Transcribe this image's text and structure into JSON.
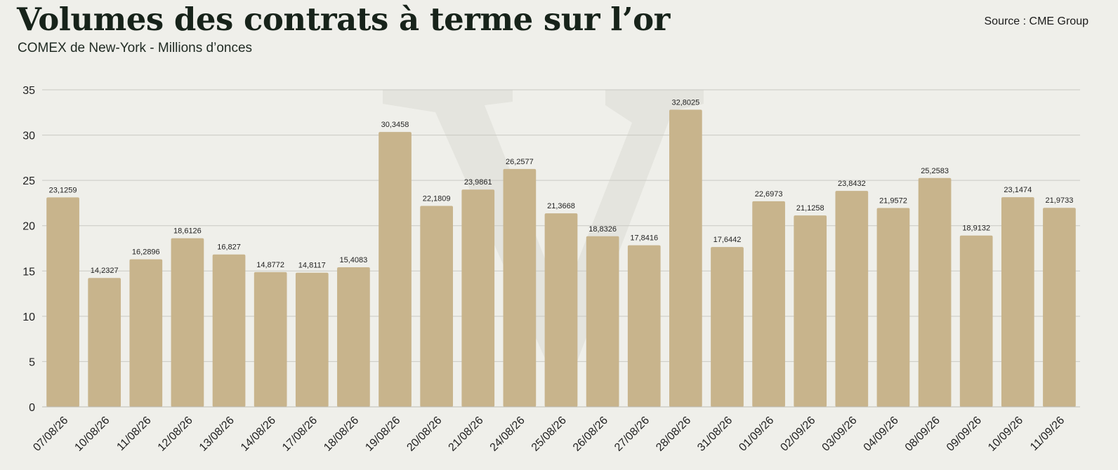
{
  "header": {
    "title": "Volumes des contrats à terme sur l’or",
    "subtitle": "COMEX de New-York - Millions d’onces",
    "source": "Source : CME Group"
  },
  "colors": {
    "bar": "#c8b48c",
    "grid": "#c9c9c3",
    "background": "#efefea",
    "watermark": "#e4e4de"
  },
  "chart_data": {
    "type": "bar",
    "title": "Volumes des contrats à terme sur l’or",
    "subtitle": "COMEX de New-York - Millions d’onces",
    "xlabel": "",
    "ylabel": "",
    "ylim": [
      0,
      35
    ],
    "yticks": [
      0,
      5,
      10,
      15,
      20,
      25,
      30,
      35
    ],
    "grid": true,
    "legend": "none",
    "categories": [
      "07/08/26",
      "10/08/26",
      "11/08/26",
      "12/08/26",
      "13/08/26",
      "14/08/26",
      "17/08/26",
      "18/08/26",
      "19/08/26",
      "20/08/26",
      "21/08/26",
      "24/08/26",
      "25/08/26",
      "26/08/26",
      "27/08/26",
      "28/08/26",
      "31/08/26",
      "01/09/26",
      "02/09/26",
      "03/09/26",
      "04/09/26",
      "08/09/26",
      "09/09/26",
      "10/09/26",
      "11/09/26"
    ],
    "values": [
      23.1259,
      14.2327,
      16.2896,
      18.6126,
      16.827,
      14.8772,
      14.8117,
      15.4083,
      30.3458,
      22.1809,
      23.9861,
      26.2577,
      21.3668,
      18.8326,
      17.8416,
      32.8025,
      17.6442,
      22.6973,
      21.1258,
      23.8432,
      21.9572,
      25.2583,
      18.9132,
      23.1474,
      21.9733
    ],
    "data_labels": [
      "23,1259",
      "14,2327",
      "16,2896",
      "18,6126",
      "16,827",
      "14,8772",
      "14,8117",
      "15,4083",
      "30,3458",
      "22,1809",
      "23,9861",
      "26,2577",
      "21,3668",
      "18,8326",
      "17,8416",
      "32,8025",
      "17,6442",
      "22,6973",
      "21,1258",
      "23,8432",
      "21,9572",
      "25,2583",
      "18,9132",
      "23,1474",
      "21,9733"
    ]
  }
}
